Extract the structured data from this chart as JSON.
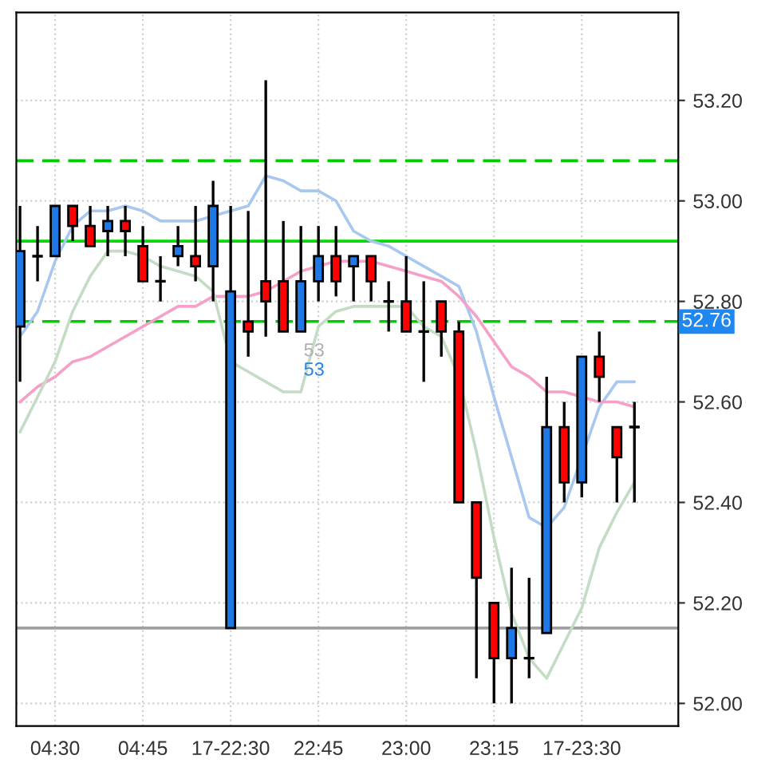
{
  "chart_data": {
    "type": "candlestick",
    "categories": [
      null,
      null,
      "04:30",
      null,
      null,
      null,
      null,
      "04:45",
      null,
      null,
      null,
      null,
      "17-22:30",
      null,
      null,
      null,
      null,
      "22:45",
      null,
      null,
      null,
      null,
      "23:00",
      null,
      null,
      null,
      null,
      "23:15",
      null,
      null,
      null,
      null,
      "17-23:30",
      null,
      null,
      null
    ],
    "ohlc": [
      [
        52.75,
        52.99,
        52.64,
        52.9
      ],
      [
        52.89,
        52.95,
        52.84,
        52.89
      ],
      [
        52.89,
        52.99,
        52.89,
        52.99
      ],
      [
        52.99,
        52.99,
        52.92,
        52.95
      ],
      [
        52.95,
        52.99,
        52.91,
        52.91
      ],
      [
        52.94,
        52.99,
        52.89,
        52.96
      ],
      [
        52.96,
        52.99,
        52.89,
        52.94
      ],
      [
        52.91,
        52.95,
        52.84,
        52.84
      ],
      [
        52.84,
        52.89,
        52.8,
        52.84
      ],
      [
        52.89,
        52.95,
        52.87,
        52.91
      ],
      [
        52.89,
        52.99,
        52.84,
        52.87
      ],
      [
        52.87,
        53.04,
        52.8,
        52.99
      ],
      [
        52.15,
        52.99,
        52.15,
        52.82
      ],
      [
        52.76,
        52.98,
        52.69,
        52.74
      ],
      [
        52.84,
        53.24,
        52.73,
        52.8
      ],
      [
        52.84,
        52.96,
        52.74,
        52.74
      ],
      [
        52.74,
        52.95,
        52.74,
        52.84
      ],
      [
        52.84,
        52.95,
        52.8,
        52.89
      ],
      [
        52.89,
        52.95,
        52.81,
        52.84
      ],
      [
        52.87,
        52.89,
        52.8,
        52.89
      ],
      [
        52.89,
        52.89,
        52.8,
        52.84
      ],
      [
        52.8,
        52.84,
        52.74,
        52.8
      ],
      [
        52.8,
        52.89,
        52.74,
        52.74
      ],
      [
        52.74,
        52.84,
        52.64,
        52.74
      ],
      [
        52.8,
        52.8,
        52.69,
        52.74
      ],
      [
        52.74,
        52.76,
        52.4,
        52.4
      ],
      [
        52.4,
        52.4,
        52.05,
        52.25
      ],
      [
        52.2,
        52.2,
        52.0,
        52.09
      ],
      [
        52.09,
        52.27,
        52.0,
        52.15
      ],
      [
        52.09,
        52.25,
        52.05,
        52.09
      ],
      [
        52.14,
        52.65,
        52.14,
        52.55
      ],
      [
        52.55,
        52.6,
        52.4,
        52.44
      ],
      [
        52.44,
        52.69,
        52.41,
        52.69
      ],
      [
        52.69,
        52.74,
        52.6,
        52.65
      ],
      [
        52.55,
        52.55,
        52.4,
        52.49
      ],
      [
        52.55,
        52.6,
        52.4,
        52.55
      ]
    ],
    "colors": [
      "#1e78e6",
      "#000000",
      "#1e78e6",
      "#ff0000",
      "#ff0000",
      "#1e78e6",
      "#ff0000",
      "#ff0000",
      "#000000",
      "#1e78e6",
      "#ff0000",
      "#1e78e6",
      "#1e78e6",
      "#ff0000",
      "#ff0000",
      "#ff0000",
      "#1e78e6",
      "#1e78e6",
      "#ff0000",
      "#1e78e6",
      "#ff0000",
      "#000000",
      "#ff0000",
      "#000000",
      "#ff0000",
      "#ff0000",
      "#ff0000",
      "#ff0000",
      "#1e78e6",
      "#000000",
      "#1e78e6",
      "#ff0000",
      "#1e78e6",
      "#ff0000",
      "#ff0000",
      "#000000"
    ],
    "series": [
      {
        "type": "line",
        "color": "#a8c8f0",
        "values": [
          52.73,
          52.78,
          52.88,
          52.95,
          52.98,
          52.98,
          52.99,
          52.98,
          52.96,
          52.96,
          52.96,
          52.97,
          52.98,
          52.99,
          53.05,
          53.04,
          53.02,
          53.02,
          53.0,
          52.94,
          52.92,
          52.91,
          52.89,
          52.87,
          52.85,
          52.83,
          52.74,
          52.61,
          52.49,
          52.37,
          52.35,
          52.39,
          null,
          52.59,
          52.64,
          52.64
        ]
      },
      {
        "type": "line",
        "color": "#f4a0c8",
        "values": [
          52.6,
          52.63,
          52.65,
          52.68,
          52.69,
          52.71,
          52.73,
          52.75,
          52.77,
          52.79,
          52.79,
          52.81,
          52.81,
          52.81,
          52.82,
          52.84,
          52.86,
          52.87,
          52.88,
          52.88,
          52.88,
          52.87,
          52.86,
          52.85,
          52.84,
          52.81,
          52.77,
          52.72,
          52.67,
          52.65,
          52.62,
          52.62,
          52.61,
          52.6,
          52.6,
          52.59
        ]
      },
      {
        "type": "line",
        "color": "#c4dcc4",
        "values": [
          52.54,
          52.61,
          52.68,
          52.78,
          52.85,
          52.9,
          52.9,
          52.89,
          52.87,
          52.86,
          52.85,
          52.82,
          52.68,
          52.66,
          52.64,
          52.62,
          52.62,
          52.75,
          52.78,
          52.79,
          52.79,
          52.79,
          52.79,
          52.75,
          52.73,
          52.65,
          52.5,
          52.33,
          52.18,
          52.09,
          52.05,
          52.12,
          52.19,
          52.31,
          52.38,
          52.44
        ]
      }
    ],
    "ref_lines": [
      {
        "axis": "y",
        "value": 53.08,
        "color": "#00cc00",
        "line_style": "dashed"
      },
      {
        "axis": "y",
        "value": 52.92,
        "color": "#00dd00",
        "line_style": "solid"
      },
      {
        "axis": "y",
        "value": 52.76,
        "label": "52.76",
        "color": "#00cc00",
        "line_style": "dashed"
      },
      {
        "axis": "y",
        "value": 52.15,
        "color": "#a0a0a0",
        "line_style": "solid"
      }
    ],
    "annotations": [
      "53",
      "53"
    ],
    "ylim": [
      51.955,
      53.375
    ],
    "yticks": [
      {
        "value": 52.0,
        "label": "52.00"
      },
      {
        "value": 52.2,
        "label": "52.20"
      },
      {
        "value": 52.4,
        "label": "52.40"
      },
      {
        "value": 52.6,
        "label": "52.60"
      },
      {
        "value": 52.8,
        "label": "52.80"
      },
      {
        "value": 53.0,
        "label": "53.00"
      },
      {
        "value": 53.2,
        "label": "53.20"
      }
    ],
    "grid": true
  }
}
